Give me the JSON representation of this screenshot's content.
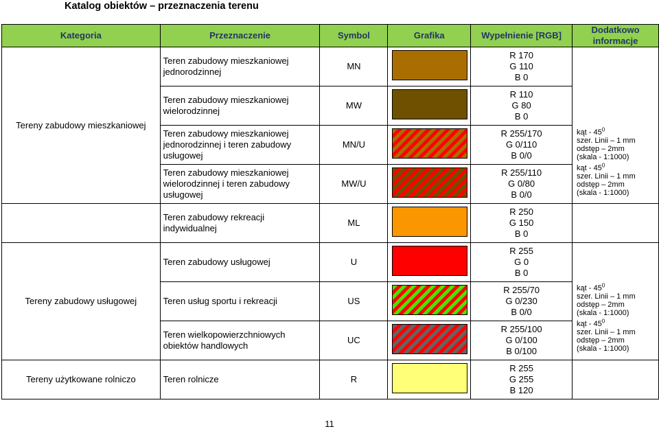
{
  "page": {
    "title": "Katalog obiektów – przeznaczenia terenu",
    "page_number": "11"
  },
  "table": {
    "headers": {
      "kategoria": "Kategoria",
      "przeznaczenie": "Przeznaczenie",
      "symbol": "Symbol",
      "grafika": "Grafika",
      "wypelnienie": "Wypełnienie [RGB]",
      "dodatkowo": "Dodatkowo informacje"
    },
    "categories": {
      "mieszkaniowe": "Tereny zabudowy mieszkaniowej",
      "uslugowe": "Tereny zabudowy usługowej",
      "rolnicze": "Tereny użytkowane rolniczo"
    },
    "rows": [
      {
        "purpose": "Teren zabudowy mieszkaniowej jednorodzinnej",
        "symbol": "MN",
        "rgb": [
          "R 170",
          "G 110",
          "B  0"
        ],
        "color": "#aa6e00",
        "pattern": "solid"
      },
      {
        "purpose": "Teren zabudowy mieszkaniowej wielorodzinnej",
        "symbol": "MW",
        "rgb": [
          "R 110",
          "G 80",
          "B  0"
        ],
        "color": "#6e5000",
        "pattern": "solid"
      },
      {
        "purpose": "Teren zabudowy mieszkaniowej jednorodzinnej i teren zabudowy usługowej",
        "symbol": "MN/U",
        "rgb": [
          "R 255/170",
          "G 0/110",
          "B  0/0"
        ],
        "color": "#aa6e00",
        "stripe": "#ff0000",
        "pattern": "hatched"
      },
      {
        "purpose": "Teren zabudowy mieszkaniowej wielorodzinnej i teren zabudowy usługowej",
        "symbol": "MW/U",
        "rgb": [
          "R 255/110",
          "G 0/80",
          "B  0/0"
        ],
        "color": "#6e5000",
        "stripe": "#ff0000",
        "pattern": "hatched"
      },
      {
        "purpose": "Teren zabudowy rekreacji indywidualnej",
        "symbol": "ML",
        "rgb": [
          "R 250",
          "G 150",
          "B  0"
        ],
        "color": "#fa9600",
        "pattern": "solid"
      },
      {
        "purpose": "Teren zabudowy usługowej",
        "symbol": "U",
        "rgb": [
          "R 255",
          "G 0",
          "B  0"
        ],
        "color": "#ff0000",
        "pattern": "solid"
      },
      {
        "purpose": "Teren usług sportu i rekreacji",
        "symbol": "US",
        "rgb": [
          "R 255/70",
          "G 0/230",
          "B  0/0"
        ],
        "color": "#46e600",
        "stripe": "#ff0000",
        "pattern": "hatched"
      },
      {
        "purpose": "Teren wielkopowierzchniowych obiektów handlowych",
        "symbol": "UC",
        "rgb": [
          "R 255/100",
          "G 0/100",
          "B  0/100"
        ],
        "color": "#646464",
        "stripe": "#ff0000",
        "pattern": "hatched"
      },
      {
        "purpose": "Teren rolnicze",
        "symbol": "R",
        "rgb": [
          "R 255",
          "G 255",
          "B 120"
        ],
        "color": "#ffff78",
        "pattern": "solid"
      }
    ],
    "info": {
      "angle": "kąt - 45",
      "angle_sup": "0",
      "line_width": "szer. Linii – 1 mm",
      "spacing": "odstęp – 2mm",
      "scale": "(skala - 1:1000)"
    }
  }
}
